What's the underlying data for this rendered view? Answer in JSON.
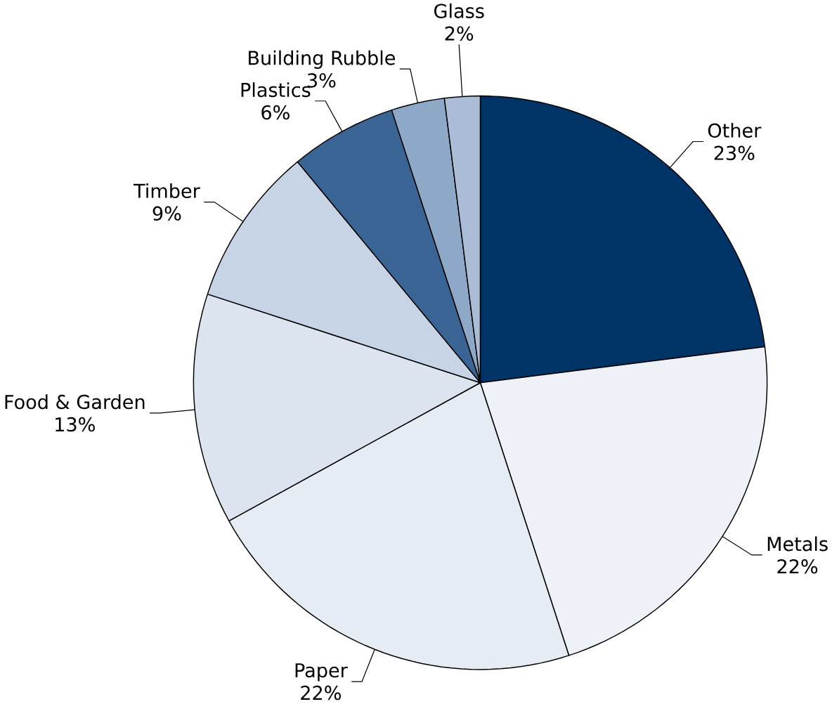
{
  "chart_data": {
    "type": "pie",
    "categories": [
      "Other",
      "Metals",
      "Paper",
      "Food & Garden",
      "Timber",
      "Plastics",
      "Building Rubble",
      "Glass"
    ],
    "values": [
      23,
      22,
      22,
      13,
      9,
      6,
      3,
      2
    ],
    "value_labels": [
      "23%",
      "22%",
      "22%",
      "13%",
      "9%",
      "6%",
      "3%",
      "2%"
    ],
    "colors": [
      "#003366",
      "#eef2f8",
      "#e6ecf4",
      "#dce4f0",
      "#c6d4e6",
      "#3a6494",
      "#8ea8c8",
      "#aabcd6"
    ]
  }
}
